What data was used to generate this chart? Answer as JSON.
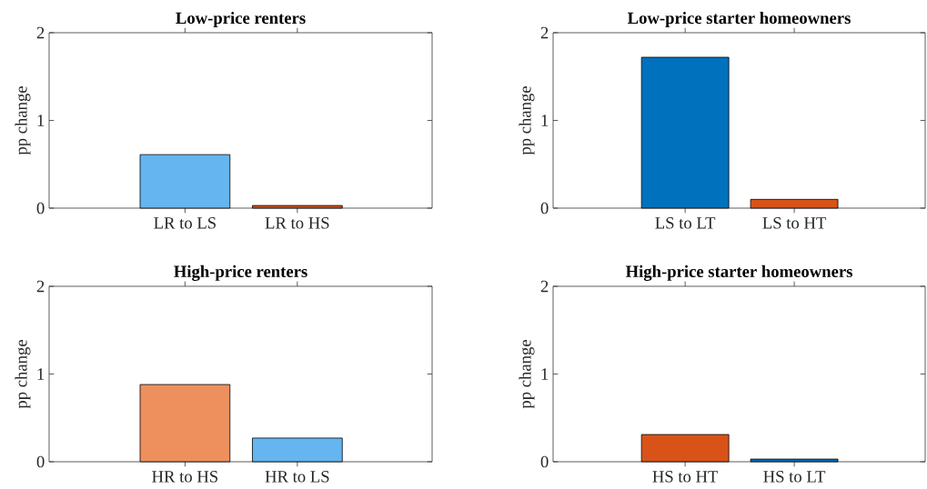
{
  "chart_data": [
    {
      "type": "bar",
      "title": "Low-price renters",
      "ylabel": "pp change",
      "categories": [
        "LR to LS",
        "LR to HS"
      ],
      "values": [
        0.61,
        0.03
      ],
      "colors": [
        "#65b5f0",
        "#d95319"
      ],
      "ylim": [
        0,
        2
      ],
      "yticks": [
        0,
        1,
        2
      ]
    },
    {
      "type": "bar",
      "title": "Low-price starter homeowners",
      "ylabel": "pp change",
      "categories": [
        "LS to LT",
        "LS to HT"
      ],
      "values": [
        1.72,
        0.1
      ],
      "colors": [
        "#0072bd",
        "#d95319"
      ],
      "ylim": [
        0,
        2
      ],
      "yticks": [
        0,
        1,
        2
      ]
    },
    {
      "type": "bar",
      "title": "High-price renters",
      "ylabel": "pp change",
      "categories": [
        "HR to HS",
        "HR to LS"
      ],
      "values": [
        0.88,
        0.27
      ],
      "colors": [
        "#ed905e",
        "#65b5f0"
      ],
      "ylim": [
        0,
        2
      ],
      "yticks": [
        0,
        1,
        2
      ]
    },
    {
      "type": "bar",
      "title": "High-price starter homeowners",
      "ylabel": "pp change",
      "categories": [
        "HS to HT",
        "HS to LT"
      ],
      "values": [
        0.31,
        0.03
      ],
      "colors": [
        "#d95319",
        "#0072bd"
      ],
      "ylim": [
        0,
        2
      ],
      "yticks": [
        0,
        1,
        2
      ]
    }
  ]
}
